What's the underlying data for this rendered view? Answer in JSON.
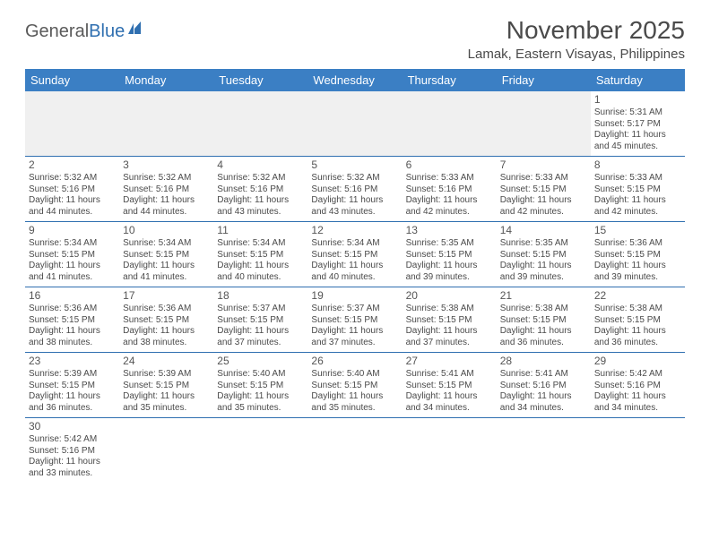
{
  "logo": {
    "part1": "General",
    "part2": "Blue"
  },
  "title": "November 2025",
  "location": "Lamak, Eastern Visayas, Philippines",
  "day_headers": [
    "Sunday",
    "Monday",
    "Tuesday",
    "Wednesday",
    "Thursday",
    "Friday",
    "Saturday"
  ],
  "colors": {
    "header_bg": "#3b7fc4",
    "header_text": "#ffffff",
    "border": "#2f6fb0",
    "text": "#4a4a4a",
    "empty_bg": "#f0f0f0",
    "logo_gray": "#5a5a5a",
    "logo_blue": "#2f6fb0"
  },
  "leading_blanks": 6,
  "days": [
    {
      "n": "1",
      "sunrise": "Sunrise: 5:31 AM",
      "sunset": "Sunset: 5:17 PM",
      "day1": "Daylight: 11 hours",
      "day2": "and 45 minutes."
    },
    {
      "n": "2",
      "sunrise": "Sunrise: 5:32 AM",
      "sunset": "Sunset: 5:16 PM",
      "day1": "Daylight: 11 hours",
      "day2": "and 44 minutes."
    },
    {
      "n": "3",
      "sunrise": "Sunrise: 5:32 AM",
      "sunset": "Sunset: 5:16 PM",
      "day1": "Daylight: 11 hours",
      "day2": "and 44 minutes."
    },
    {
      "n": "4",
      "sunrise": "Sunrise: 5:32 AM",
      "sunset": "Sunset: 5:16 PM",
      "day1": "Daylight: 11 hours",
      "day2": "and 43 minutes."
    },
    {
      "n": "5",
      "sunrise": "Sunrise: 5:32 AM",
      "sunset": "Sunset: 5:16 PM",
      "day1": "Daylight: 11 hours",
      "day2": "and 43 minutes."
    },
    {
      "n": "6",
      "sunrise": "Sunrise: 5:33 AM",
      "sunset": "Sunset: 5:16 PM",
      "day1": "Daylight: 11 hours",
      "day2": "and 42 minutes."
    },
    {
      "n": "7",
      "sunrise": "Sunrise: 5:33 AM",
      "sunset": "Sunset: 5:15 PM",
      "day1": "Daylight: 11 hours",
      "day2": "and 42 minutes."
    },
    {
      "n": "8",
      "sunrise": "Sunrise: 5:33 AM",
      "sunset": "Sunset: 5:15 PM",
      "day1": "Daylight: 11 hours",
      "day2": "and 42 minutes."
    },
    {
      "n": "9",
      "sunrise": "Sunrise: 5:34 AM",
      "sunset": "Sunset: 5:15 PM",
      "day1": "Daylight: 11 hours",
      "day2": "and 41 minutes."
    },
    {
      "n": "10",
      "sunrise": "Sunrise: 5:34 AM",
      "sunset": "Sunset: 5:15 PM",
      "day1": "Daylight: 11 hours",
      "day2": "and 41 minutes."
    },
    {
      "n": "11",
      "sunrise": "Sunrise: 5:34 AM",
      "sunset": "Sunset: 5:15 PM",
      "day1": "Daylight: 11 hours",
      "day2": "and 40 minutes."
    },
    {
      "n": "12",
      "sunrise": "Sunrise: 5:34 AM",
      "sunset": "Sunset: 5:15 PM",
      "day1": "Daylight: 11 hours",
      "day2": "and 40 minutes."
    },
    {
      "n": "13",
      "sunrise": "Sunrise: 5:35 AM",
      "sunset": "Sunset: 5:15 PM",
      "day1": "Daylight: 11 hours",
      "day2": "and 39 minutes."
    },
    {
      "n": "14",
      "sunrise": "Sunrise: 5:35 AM",
      "sunset": "Sunset: 5:15 PM",
      "day1": "Daylight: 11 hours",
      "day2": "and 39 minutes."
    },
    {
      "n": "15",
      "sunrise": "Sunrise: 5:36 AM",
      "sunset": "Sunset: 5:15 PM",
      "day1": "Daylight: 11 hours",
      "day2": "and 39 minutes."
    },
    {
      "n": "16",
      "sunrise": "Sunrise: 5:36 AM",
      "sunset": "Sunset: 5:15 PM",
      "day1": "Daylight: 11 hours",
      "day2": "and 38 minutes."
    },
    {
      "n": "17",
      "sunrise": "Sunrise: 5:36 AM",
      "sunset": "Sunset: 5:15 PM",
      "day1": "Daylight: 11 hours",
      "day2": "and 38 minutes."
    },
    {
      "n": "18",
      "sunrise": "Sunrise: 5:37 AM",
      "sunset": "Sunset: 5:15 PM",
      "day1": "Daylight: 11 hours",
      "day2": "and 37 minutes."
    },
    {
      "n": "19",
      "sunrise": "Sunrise: 5:37 AM",
      "sunset": "Sunset: 5:15 PM",
      "day1": "Daylight: 11 hours",
      "day2": "and 37 minutes."
    },
    {
      "n": "20",
      "sunrise": "Sunrise: 5:38 AM",
      "sunset": "Sunset: 5:15 PM",
      "day1": "Daylight: 11 hours",
      "day2": "and 37 minutes."
    },
    {
      "n": "21",
      "sunrise": "Sunrise: 5:38 AM",
      "sunset": "Sunset: 5:15 PM",
      "day1": "Daylight: 11 hours",
      "day2": "and 36 minutes."
    },
    {
      "n": "22",
      "sunrise": "Sunrise: 5:38 AM",
      "sunset": "Sunset: 5:15 PM",
      "day1": "Daylight: 11 hours",
      "day2": "and 36 minutes."
    },
    {
      "n": "23",
      "sunrise": "Sunrise: 5:39 AM",
      "sunset": "Sunset: 5:15 PM",
      "day1": "Daylight: 11 hours",
      "day2": "and 36 minutes."
    },
    {
      "n": "24",
      "sunrise": "Sunrise: 5:39 AM",
      "sunset": "Sunset: 5:15 PM",
      "day1": "Daylight: 11 hours",
      "day2": "and 35 minutes."
    },
    {
      "n": "25",
      "sunrise": "Sunrise: 5:40 AM",
      "sunset": "Sunset: 5:15 PM",
      "day1": "Daylight: 11 hours",
      "day2": "and 35 minutes."
    },
    {
      "n": "26",
      "sunrise": "Sunrise: 5:40 AM",
      "sunset": "Sunset: 5:15 PM",
      "day1": "Daylight: 11 hours",
      "day2": "and 35 minutes."
    },
    {
      "n": "27",
      "sunrise": "Sunrise: 5:41 AM",
      "sunset": "Sunset: 5:15 PM",
      "day1": "Daylight: 11 hours",
      "day2": "and 34 minutes."
    },
    {
      "n": "28",
      "sunrise": "Sunrise: 5:41 AM",
      "sunset": "Sunset: 5:16 PM",
      "day1": "Daylight: 11 hours",
      "day2": "and 34 minutes."
    },
    {
      "n": "29",
      "sunrise": "Sunrise: 5:42 AM",
      "sunset": "Sunset: 5:16 PM",
      "day1": "Daylight: 11 hours",
      "day2": "and 34 minutes."
    },
    {
      "n": "30",
      "sunrise": "Sunrise: 5:42 AM",
      "sunset": "Sunset: 5:16 PM",
      "day1": "Daylight: 11 hours",
      "day2": "and 33 minutes."
    }
  ]
}
